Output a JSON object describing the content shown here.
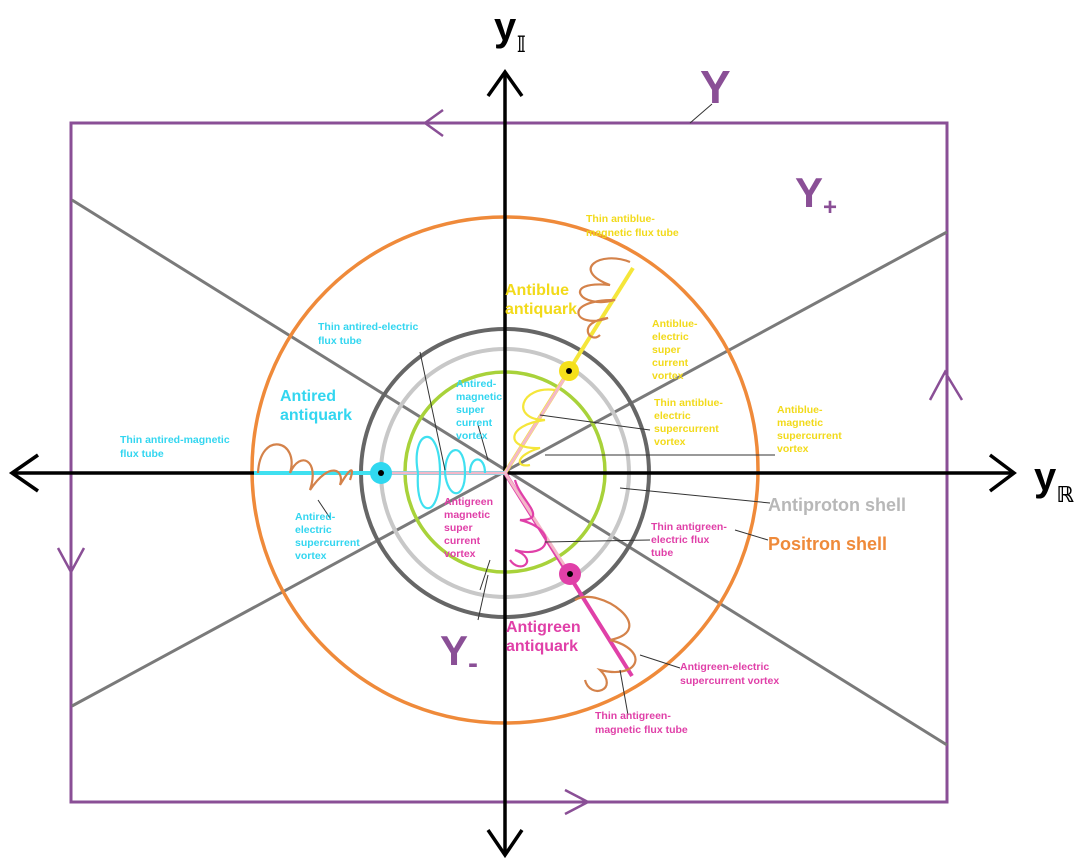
{
  "axes": {
    "vertical": {
      "main": "y",
      "sub": "𝕀"
    },
    "horizontal": {
      "main": "y",
      "sub": "ℝ"
    }
  },
  "regions": {
    "whole": "Y",
    "plus": {
      "main": "Y",
      "sub": "+"
    },
    "minus": {
      "main": "Y",
      "sub": "-"
    }
  },
  "shells": {
    "antiproton": "Antiproton shell",
    "positron": "Positron shell"
  },
  "antiblue": {
    "quark": [
      "Antiblue",
      "antiquark"
    ],
    "magnetic_flux_tube": [
      "Thin antiblue-",
      "magnetic flux tube"
    ],
    "electric_vortex": [
      "Antiblue-",
      "electric",
      "super",
      "current",
      "vortex"
    ],
    "electric_flux_tube": [
      "Thin antiblue-",
      "electric",
      "supercurrent",
      "vortex"
    ],
    "magnetic_vortex": [
      "Antiblue-",
      "magnetic",
      "supercurrent",
      "vortex"
    ]
  },
  "antigreen": {
    "quark": [
      "Antigreen",
      "antiquark"
    ],
    "electric_flux_tube": [
      "Thin antigreen-",
      "electric flux",
      "tube"
    ],
    "electric_vortex": [
      "Antigreen-electric",
      "supercurrent vortex"
    ],
    "magnetic_flux_tube": [
      "Thin antigreen-",
      "magnetic flux tube"
    ],
    "magnetic_vortex": [
      "Antigreen",
      "magnetic",
      "super",
      "current",
      "vortex"
    ]
  },
  "antired": {
    "quark": [
      "Antired",
      "antiquark"
    ],
    "electric_flux_tube": [
      "Thin antired-electric",
      "flux tube"
    ],
    "magnetic_vortex": [
      "Antired-",
      "magnetic",
      "super",
      "current",
      "vortex"
    ],
    "magnetic_flux_tube": [
      "Thin antired-magnetic",
      "flux tube"
    ],
    "electric_vortex": [
      "Antired-",
      "electric",
      "supercurrent",
      "vortex"
    ]
  }
}
